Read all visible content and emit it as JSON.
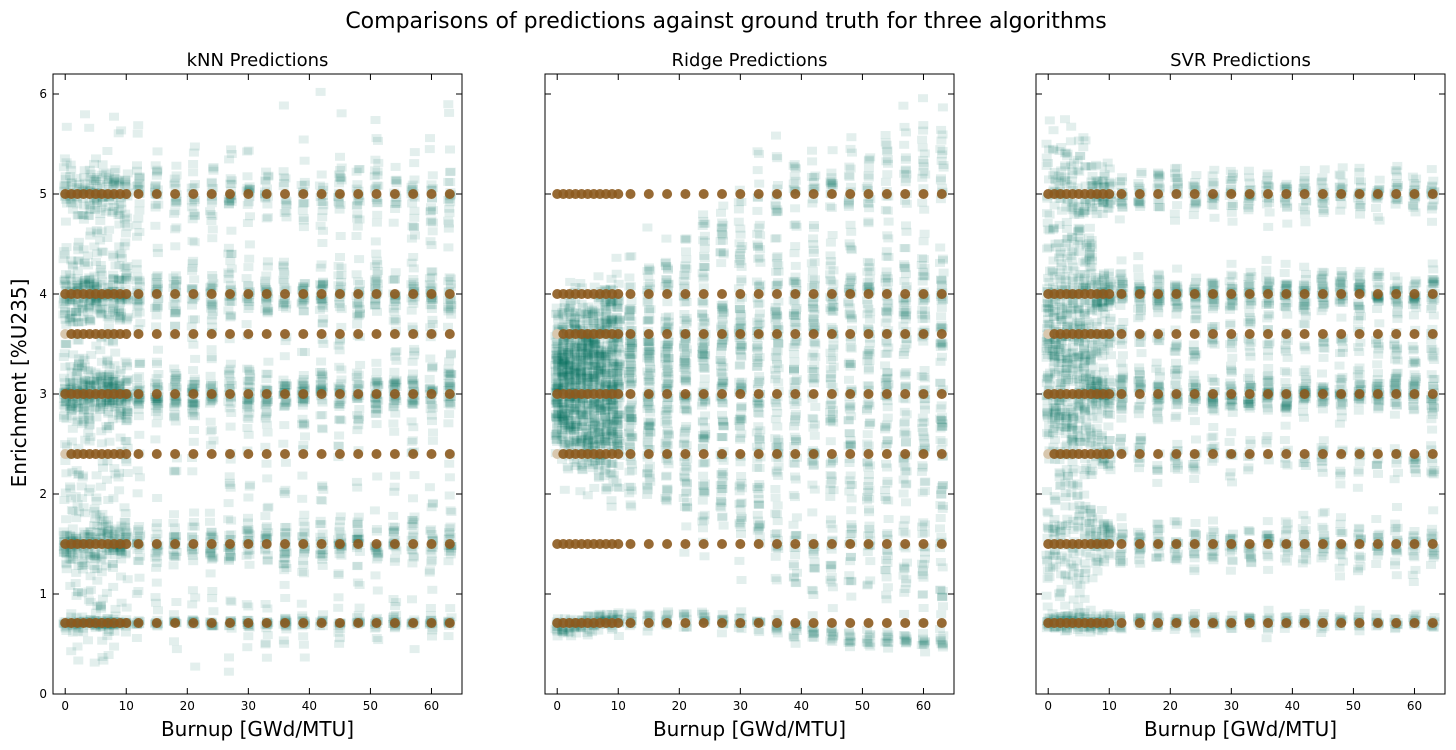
{
  "figure": {
    "suptitle": "Comparisons of predictions against ground truth for three algorithms",
    "ylabel": "Enrichment [%U235]"
  },
  "colors": {
    "prediction": "#006b5f",
    "truth": "#8c5a1e",
    "truth_faded": "#d8c7ae",
    "axes": "#000000"
  },
  "chart_data": [
    {
      "type": "scatter",
      "title": "kNN Predictions",
      "xlabel": "Burnup [GWd/MTU]",
      "ylabel": "Enrichment [%U235]",
      "xlim": [
        -2,
        65
      ],
      "ylim": [
        0,
        6.2
      ],
      "xticks": [
        0,
        10,
        20,
        30,
        40,
        50,
        60
      ],
      "yticks": [
        0,
        1,
        2,
        3,
        4,
        5,
        6
      ],
      "grid": false,
      "model": "knn",
      "truth_burnups": [
        0,
        1,
        2,
        3,
        4,
        5,
        6,
        7,
        8,
        9,
        10,
        12,
        15,
        18,
        21,
        24,
        27,
        30,
        33,
        36,
        39,
        42,
        45,
        48,
        51,
        54,
        57,
        60,
        63
      ],
      "truth_enrichments": [
        0.71,
        1.5,
        2.4,
        3.0,
        3.6,
        4.0,
        5.0
      ]
    },
    {
      "type": "scatter",
      "title": "Ridge Predictions",
      "xlabel": "Burnup [GWd/MTU]",
      "xlim": [
        -2,
        65
      ],
      "ylim": [
        0,
        6.2
      ],
      "xticks": [
        0,
        10,
        20,
        30,
        40,
        50,
        60
      ],
      "yticks": [
        0,
        1,
        2,
        3,
        4,
        5,
        6
      ],
      "grid": false,
      "model": "ridge",
      "truth_burnups": [
        0,
        1,
        2,
        3,
        4,
        5,
        6,
        7,
        8,
        9,
        10,
        12,
        15,
        18,
        21,
        24,
        27,
        30,
        33,
        36,
        39,
        42,
        45,
        48,
        51,
        54,
        57,
        60,
        63
      ],
      "truth_enrichments": [
        0.71,
        1.5,
        2.4,
        3.0,
        3.6,
        4.0,
        5.0
      ]
    },
    {
      "type": "scatter",
      "title": "SVR Predictions",
      "xlabel": "Burnup [GWd/MTU]",
      "xlim": [
        -2,
        65
      ],
      "ylim": [
        0,
        6.2
      ],
      "xticks": [
        0,
        10,
        20,
        30,
        40,
        50,
        60
      ],
      "yticks": [
        0,
        1,
        2,
        3,
        4,
        5,
        6
      ],
      "grid": false,
      "model": "svr",
      "truth_burnups": [
        0,
        1,
        2,
        3,
        4,
        5,
        6,
        7,
        8,
        9,
        10,
        12,
        15,
        18,
        21,
        24,
        27,
        30,
        33,
        36,
        39,
        42,
        45,
        48,
        51,
        54,
        57,
        60,
        63
      ],
      "truth_enrichments": [
        0.71,
        1.5,
        2.4,
        3.0,
        3.6,
        4.0,
        5.0
      ]
    }
  ]
}
